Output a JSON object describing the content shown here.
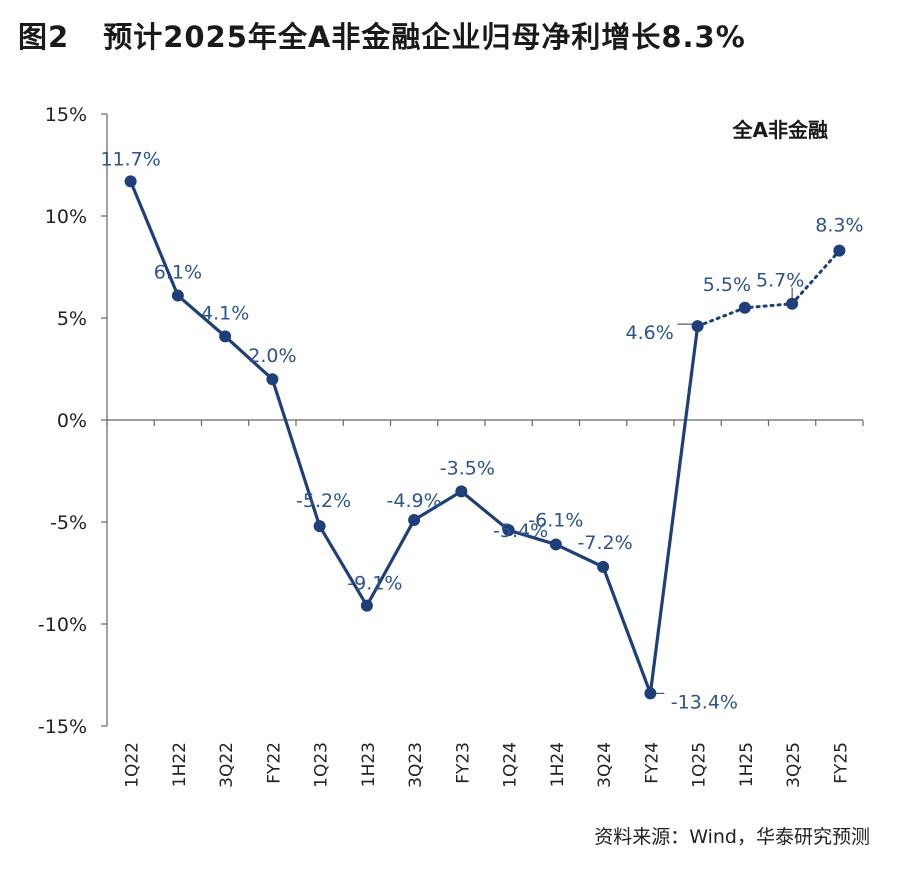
{
  "figure": {
    "label": "图2",
    "title": "预计2025年全A非金融企业归母净利增长8.3%",
    "source": "资料来源：Wind，华泰研究预测"
  },
  "chart_data": {
    "type": "line",
    "legend_text": "全A非金融",
    "legend_position": "top-right",
    "categories": [
      "1Q22",
      "1H22",
      "3Q22",
      "FY22",
      "1Q23",
      "1H23",
      "3Q23",
      "FY23",
      "1Q24",
      "1H24",
      "3Q24",
      "FY24",
      "1Q25",
      "1H25",
      "3Q25",
      "FY25"
    ],
    "values": [
      11.7,
      6.1,
      4.1,
      2.0,
      -5.2,
      -9.1,
      -4.9,
      -3.5,
      -5.4,
      -6.1,
      -7.2,
      -13.4,
      4.6,
      5.5,
      5.7,
      8.3
    ],
    "data_labels": [
      "11.7%",
      "6.1%",
      "4.1%",
      "2.0%",
      "-5.2%",
      "-9.1%",
      "-4.9%",
      "-3.5%",
      "-5.4%",
      "-6.1%",
      "-7.2%",
      "-13.4%",
      "4.6%",
      "5.5%",
      "5.7%",
      "8.3%"
    ],
    "actual_count": 13,
    "forecast_style": "dotted",
    "ylim": [
      -15,
      15
    ],
    "yticks": [
      15,
      10,
      5,
      0,
      -5,
      -10,
      -15
    ],
    "ytick_labels": [
      "15%",
      "10%",
      "5%",
      "0%",
      "-5%",
      "-10%",
      "-15%"
    ],
    "grid": false,
    "colors": {
      "line": "#1f3f7a",
      "label": "#2d548f"
    }
  }
}
